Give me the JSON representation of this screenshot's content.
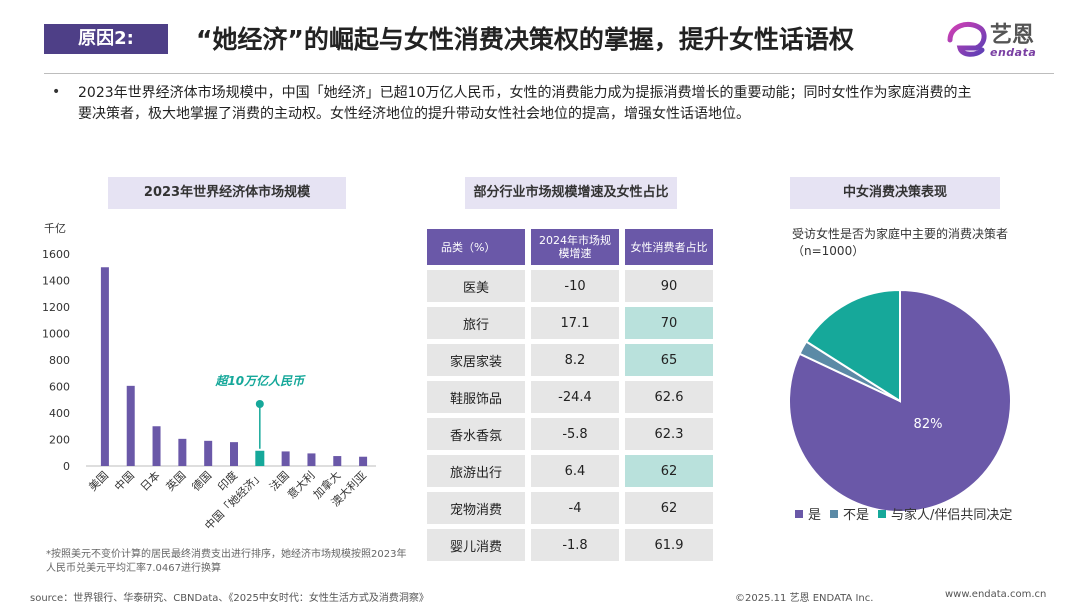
{
  "header": {
    "tag": "原因2:",
    "title": "“她经济”的崛起与女性消费决策权的掌握，提升女性话语权",
    "logo_text": "艺恩",
    "logo_sub": "endata"
  },
  "intro": {
    "bullet": "•",
    "text": "2023年世界经济体市场规模中，中国「她经济」已超10万亿人民币，女性的消费能力成为提振消费增长的重要动能；同时女性作为家庭消费的主要决策者，极大地掌握了消费的主动权。女性经济地位的提升带动女性社会地位的提高，增强女性话语地位。"
  },
  "sections": {
    "bar_title": "2023年世界经济体市场规模",
    "table_title": "部分行业市场规模增速及女性占比",
    "pie_title": "中女消费决策表现"
  },
  "colors": {
    "purple": "#6a58a8",
    "teal": "#16a89a",
    "steel": "#5b8aa6",
    "header_bg": "#4e3f87"
  },
  "chart_data": [
    {
      "type": "bar",
      "title": "2023年世界经济体市场规模",
      "ylabel": "千亿",
      "ylim": [
        0,
        1600
      ],
      "yticks": [
        0,
        200,
        400,
        600,
        800,
        1000,
        1200,
        1400,
        1600
      ],
      "categories": [
        "美国",
        "中国",
        "日本",
        "英国",
        "德国",
        "印度",
        "中国「她经济」",
        "法国",
        "意大利",
        "加拿大",
        "澳大利亚"
      ],
      "values": [
        1500,
        605,
        300,
        205,
        190,
        180,
        115,
        110,
        95,
        75,
        70
      ],
      "highlight_index": 6,
      "annotation": "超10万亿人民币"
    },
    {
      "type": "table",
      "title": "部分行业市场规模增速及女性占比",
      "columns": [
        "品类（%）",
        "2024年市场规模增速",
        "女性消费者占比"
      ],
      "rows": [
        [
          "医美",
          "-10",
          "90"
        ],
        [
          "旅行",
          "17.1",
          "70"
        ],
        [
          "家居家装",
          "8.2",
          "65"
        ],
        [
          "鞋服饰品",
          "-24.4",
          "62.6"
        ],
        [
          "香水香氛",
          "-5.8",
          "62.3"
        ],
        [
          "旅游出行",
          "6.4",
          "62"
        ],
        [
          "宠物消费",
          "-4",
          "62"
        ],
        [
          "婴儿消费",
          "-1.8",
          "61.9"
        ]
      ],
      "highlighted_rows": [
        1,
        2,
        5
      ]
    },
    {
      "type": "pie",
      "title": "中女消费决策表现",
      "subtitle": "受访女性是否为家庭中主要的消费决策者（n=1000）",
      "labels": [
        "是",
        "不是",
        "与家人/伴侣共同决定"
      ],
      "values": [
        82,
        2,
        16
      ],
      "data_label": "82%"
    }
  ],
  "footnote": "*按照美元不变价计算的居民最终消费支出进行排序，她经济市场规模按照2023年人民币兑美元平均汇率7.0467进行换算",
  "footer": {
    "source": "source：世界银行、华泰研究、CBNData、《2025中女时代：女性生活方式及消费洞察》",
    "copyright": "©2025.11 艺恩 ENDATA Inc.",
    "website": "www.endata.com.cn"
  }
}
